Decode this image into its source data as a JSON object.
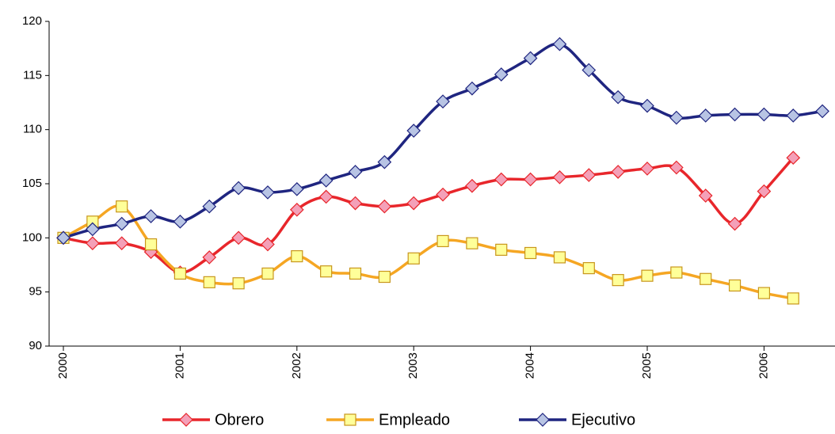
{
  "chart_data": {
    "type": "line",
    "categories": [
      "2000",
      null,
      null,
      null,
      "2001",
      null,
      null,
      null,
      "2002",
      null,
      null,
      null,
      "2003",
      null,
      null,
      null,
      "2004",
      null,
      null,
      null,
      "2005",
      null,
      null,
      null,
      "2006",
      null,
      null
    ],
    "series": [
      {
        "name": "Obrero",
        "color": "#e8262b",
        "marker": "diamond",
        "marker_color": "#f4a0b8",
        "values": [
          100,
          99.5,
          99.5,
          98.7,
          96.8,
          98.2,
          100.0,
          99.4,
          102.6,
          103.8,
          103.2,
          102.9,
          103.2,
          104.0,
          104.8,
          105.4,
          105.4,
          105.6,
          105.8,
          106.1,
          106.4,
          106.5,
          103.9,
          101.3,
          104.3,
          107.4,
          null
        ]
      },
      {
        "name": "Empleado",
        "color": "#f5a623",
        "marker": "square",
        "marker_color": "#ffff99",
        "values": [
          100,
          101.5,
          102.9,
          99.4,
          96.7,
          95.9,
          95.8,
          96.7,
          98.3,
          96.9,
          96.7,
          96.4,
          98.1,
          99.7,
          99.5,
          98.9,
          98.6,
          98.2,
          97.2,
          96.1,
          96.5,
          96.8,
          96.2,
          95.6,
          94.9,
          94.4,
          null
        ]
      },
      {
        "name": "Ejecutivo",
        "color": "#1f2580",
        "marker": "diamond",
        "marker_color": "#b8c4e4",
        "values": [
          100,
          100.8,
          101.3,
          102.0,
          101.5,
          102.9,
          104.6,
          104.2,
          104.5,
          105.3,
          106.1,
          107.0,
          109.9,
          112.6,
          113.8,
          115.1,
          116.6,
          117.9,
          115.5,
          113.0,
          112.2,
          111.1,
          111.3,
          111.4,
          111.4,
          111.3,
          111.7
        ]
      }
    ],
    "ylim": [
      90,
      120
    ],
    "yticks": [
      90,
      95,
      100,
      105,
      110,
      115,
      120
    ],
    "legend": "bottom"
  }
}
